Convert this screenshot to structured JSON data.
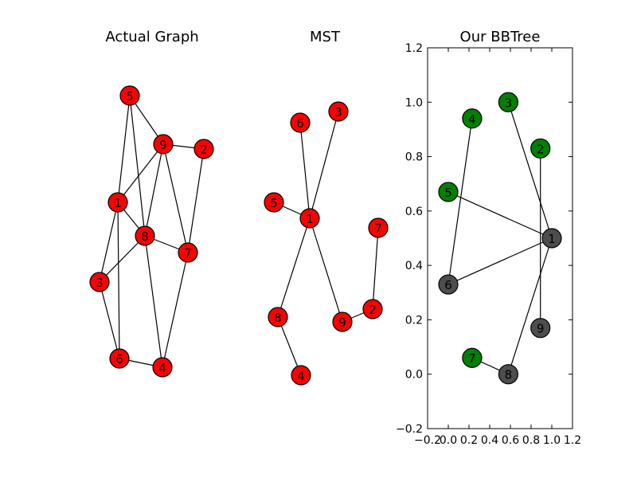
{
  "colors": {
    "node_red": "#ff0000",
    "node_green": "#008000",
    "node_gray": "#4d4d4d",
    "edge": "#000000"
  },
  "panels": [
    {
      "id": "actual",
      "title": "Actual Graph",
      "nodes": [
        {
          "id": "5",
          "label": "5",
          "color": "red"
        },
        {
          "id": "9",
          "label": "9",
          "color": "red"
        },
        {
          "id": "2",
          "label": "2",
          "color": "red"
        },
        {
          "id": "1",
          "label": "1",
          "color": "red"
        },
        {
          "id": "8",
          "label": "8",
          "color": "red"
        },
        {
          "id": "7",
          "label": "7",
          "color": "red"
        },
        {
          "id": "3",
          "label": "3",
          "color": "red"
        },
        {
          "id": "6",
          "label": "6",
          "color": "red"
        },
        {
          "id": "4",
          "label": "4",
          "color": "red"
        }
      ],
      "edges": [
        [
          "5",
          "9"
        ],
        [
          "5",
          "1"
        ],
        [
          "5",
          "8"
        ],
        [
          "9",
          "2"
        ],
        [
          "9",
          "1"
        ],
        [
          "9",
          "8"
        ],
        [
          "9",
          "7"
        ],
        [
          "2",
          "7"
        ],
        [
          "1",
          "8"
        ],
        [
          "1",
          "3"
        ],
        [
          "1",
          "6"
        ],
        [
          "8",
          "7"
        ],
        [
          "8",
          "3"
        ],
        [
          "8",
          "4"
        ],
        [
          "7",
          "4"
        ],
        [
          "3",
          "6"
        ],
        [
          "6",
          "4"
        ]
      ]
    },
    {
      "id": "mst",
      "title": "MST",
      "nodes": [
        {
          "id": "6",
          "label": "6",
          "color": "red"
        },
        {
          "id": "3",
          "label": "3",
          "color": "red"
        },
        {
          "id": "5",
          "label": "5",
          "color": "red"
        },
        {
          "id": "1",
          "label": "1",
          "color": "red"
        },
        {
          "id": "7",
          "label": "7",
          "color": "red"
        },
        {
          "id": "2",
          "label": "2",
          "color": "red"
        },
        {
          "id": "8",
          "label": "8",
          "color": "red"
        },
        {
          "id": "9",
          "label": "9",
          "color": "red"
        },
        {
          "id": "4",
          "label": "4",
          "color": "red"
        }
      ],
      "edges": [
        [
          "6",
          "1"
        ],
        [
          "3",
          "1"
        ],
        [
          "5",
          "1"
        ],
        [
          "1",
          "8"
        ],
        [
          "1",
          "9"
        ],
        [
          "9",
          "2"
        ],
        [
          "2",
          "7"
        ],
        [
          "8",
          "4"
        ]
      ]
    }
  ],
  "chart_data": {
    "type": "scatter",
    "title": "Our BBTree",
    "xlim": [
      -0.2,
      1.2
    ],
    "ylim": [
      -0.2,
      1.2
    ],
    "xticks": [
      "−0.2",
      "0.0",
      "0.2",
      "0.4",
      "0.6",
      "0.8",
      "1.0",
      "1.2"
    ],
    "yticks": [
      "−0.2",
      "0.0",
      "0.2",
      "0.4",
      "0.6",
      "0.8",
      "1.0",
      "1.2"
    ],
    "xtick_values": [
      -0.2,
      0.0,
      0.2,
      0.4,
      0.6,
      0.8,
      1.0,
      1.2
    ],
    "ytick_values": [
      -0.2,
      0.0,
      0.2,
      0.4,
      0.6,
      0.8,
      1.0,
      1.2
    ],
    "nodes": [
      {
        "id": "3",
        "label": "3",
        "x": 0.58,
        "y": 1.0,
        "color": "green"
      },
      {
        "id": "4",
        "label": "4",
        "x": 0.23,
        "y": 0.94,
        "color": "green"
      },
      {
        "id": "2",
        "label": "2",
        "x": 0.89,
        "y": 0.83,
        "color": "green"
      },
      {
        "id": "5",
        "label": "5",
        "x": 0.0,
        "y": 0.67,
        "color": "green"
      },
      {
        "id": "1",
        "label": "1",
        "x": 1.0,
        "y": 0.5,
        "color": "gray"
      },
      {
        "id": "6",
        "label": "6",
        "x": 0.0,
        "y": 0.33,
        "color": "gray"
      },
      {
        "id": "9",
        "label": "9",
        "x": 0.89,
        "y": 0.17,
        "color": "gray"
      },
      {
        "id": "7",
        "label": "7",
        "x": 0.23,
        "y": 0.06,
        "color": "green"
      },
      {
        "id": "8",
        "label": "8",
        "x": 0.58,
        "y": 0.0,
        "color": "gray"
      }
    ],
    "edges": [
      [
        "3",
        "1"
      ],
      [
        "5",
        "1"
      ],
      [
        "6",
        "1"
      ],
      [
        "8",
        "1"
      ],
      [
        "4",
        "6"
      ],
      [
        "2",
        "9"
      ],
      [
        "7",
        "8"
      ]
    ]
  }
}
